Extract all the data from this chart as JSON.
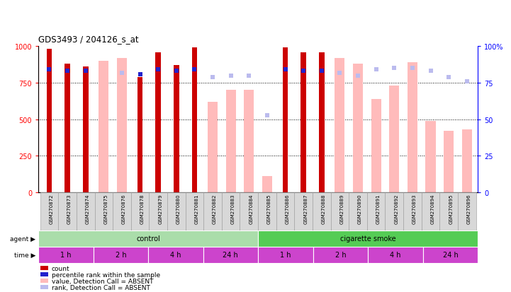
{
  "title": "GDS3493 / 204126_s_at",
  "samples": [
    "GSM270872",
    "GSM270873",
    "GSM270874",
    "GSM270875",
    "GSM270876",
    "GSM270878",
    "GSM270879",
    "GSM270880",
    "GSM270881",
    "GSM270882",
    "GSM270883",
    "GSM270884",
    "GSM270885",
    "GSM270886",
    "GSM270887",
    "GSM270888",
    "GSM270889",
    "GSM270890",
    "GSM270891",
    "GSM270892",
    "GSM270893",
    "GSM270894",
    "GSM270895",
    "GSM270896"
  ],
  "count_values": [
    980,
    880,
    860,
    null,
    null,
    790,
    960,
    870,
    990,
    null,
    null,
    null,
    null,
    990,
    960,
    960,
    null,
    null,
    null,
    null,
    null,
    null,
    null,
    null
  ],
  "rank_values": [
    84,
    83,
    83,
    null,
    null,
    81,
    84,
    83,
    84,
    null,
    null,
    null,
    null,
    84,
    83,
    83,
    null,
    null,
    null,
    null,
    null,
    null,
    null,
    null
  ],
  "absent_value_values": [
    null,
    null,
    null,
    900,
    920,
    null,
    null,
    null,
    null,
    620,
    700,
    700,
    110,
    null,
    null,
    null,
    920,
    880,
    640,
    730,
    890,
    490,
    420,
    430
  ],
  "absent_rank_values": [
    null,
    null,
    null,
    null,
    82,
    null,
    null,
    null,
    null,
    79,
    80,
    80,
    53,
    null,
    null,
    null,
    82,
    80,
    84,
    85,
    85,
    83,
    79,
    76
  ],
  "ylim_left": [
    0,
    1000
  ],
  "ylim_right": [
    0,
    100
  ],
  "left_yticks": [
    0,
    250,
    500,
    750,
    1000
  ],
  "right_yticks": [
    0,
    25,
    50,
    75,
    100
  ],
  "color_count": "#cc0000",
  "color_rank": "#2222cc",
  "color_absent_value": "#ffbbbb",
  "color_absent_rank": "#bbbbee",
  "agent_groups": [
    {
      "label": "control",
      "start": 0,
      "end": 12,
      "color": "#aaddaa"
    },
    {
      "label": "cigarette smoke",
      "start": 12,
      "end": 24,
      "color": "#55cc55"
    }
  ],
  "time_groups": [
    {
      "label": "1 h",
      "start": 0,
      "end": 3
    },
    {
      "label": "2 h",
      "start": 3,
      "end": 6
    },
    {
      "label": "4 h",
      "start": 6,
      "end": 9
    },
    {
      "label": "24 h",
      "start": 9,
      "end": 12
    },
    {
      "label": "1 h",
      "start": 12,
      "end": 15
    },
    {
      "label": "2 h",
      "start": 15,
      "end": 18
    },
    {
      "label": "4 h",
      "start": 18,
      "end": 21
    },
    {
      "label": "24 h",
      "start": 21,
      "end": 24
    }
  ],
  "time_color": "#cc44cc",
  "legend_items": [
    {
      "label": "count",
      "color": "#cc0000"
    },
    {
      "label": "percentile rank within the sample",
      "color": "#2222cc"
    },
    {
      "label": "value, Detection Call = ABSENT",
      "color": "#ffbbbb"
    },
    {
      "label": "rank, Detection Call = ABSENT",
      "color": "#bbbbee"
    }
  ],
  "bg_color": "#ffffff"
}
